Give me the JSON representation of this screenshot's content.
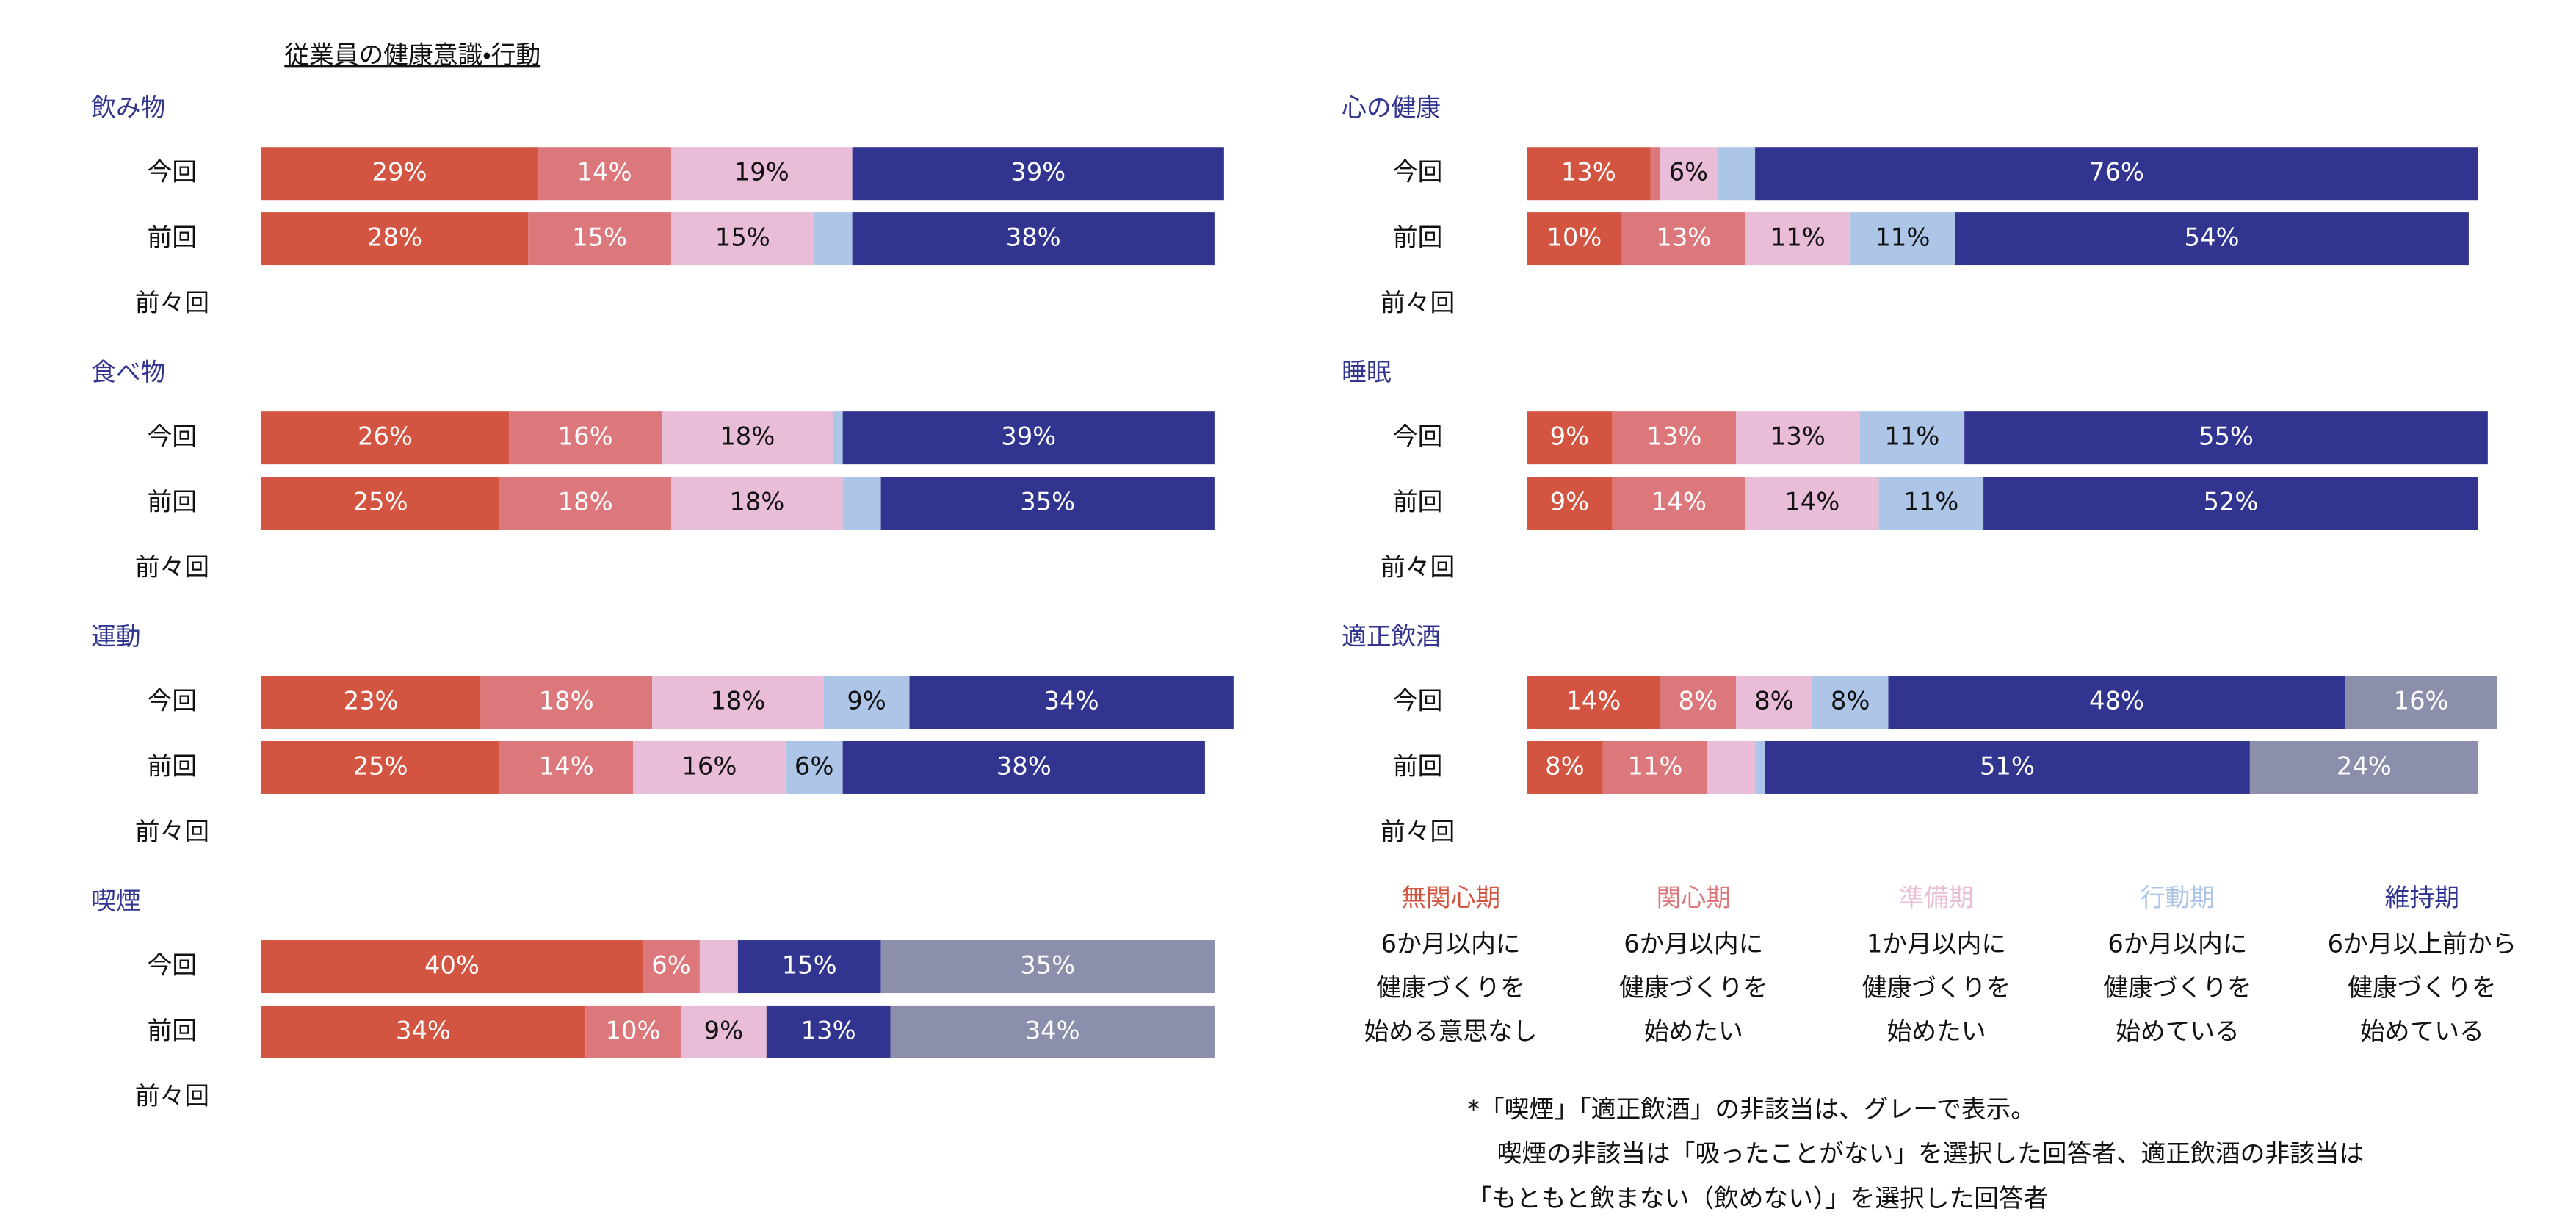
{
  "title": "従業員の健康意識・行動",
  "chart_data": [
    {
      "type": "bar",
      "title": "飲み物",
      "categories": [
        "今回",
        "前回",
        "前々回"
      ],
      "xlim": [
        0,
        100
      ],
      "series": [
        {
          "color": "#d35440",
          "values": [
            29,
            28,
            null
          ],
          "value_labels": [
            "29%",
            "28%",
            null
          ]
        },
        {
          "color": "#dc777c",
          "values": [
            14,
            15,
            null
          ],
          "value_labels": [
            "14%",
            "15%",
            null
          ]
        },
        {
          "color": "#e9bdd8",
          "values": [
            19,
            15,
            null
          ],
          "value_labels": [
            "19%",
            "15%",
            null
          ]
        },
        {
          "color": "#adc6e8",
          "values": [
            0,
            4,
            null
          ],
          "value_labels": [
            null,
            null,
            null
          ]
        },
        {
          "color": "#323590",
          "values": [
            39,
            38,
            null
          ],
          "value_labels": [
            "39%",
            "38%",
            null
          ]
        }
      ]
    },
    {
      "type": "bar",
      "title": "食べ物",
      "categories": [
        "今回",
        "前回",
        "前々回"
      ],
      "xlim": [
        0,
        100
      ],
      "series": [
        {
          "color": "#d35440",
          "values": [
            26,
            25,
            null
          ],
          "value_labels": [
            "26%",
            "25%",
            null
          ]
        },
        {
          "color": "#dc777c",
          "values": [
            16,
            18,
            null
          ],
          "value_labels": [
            "16%",
            "18%",
            null
          ]
        },
        {
          "color": "#e9bdd8",
          "values": [
            18,
            18,
            null
          ],
          "value_labels": [
            "18%",
            "18%",
            null
          ]
        },
        {
          "color": "#adc6e8",
          "values": [
            1,
            4,
            null
          ],
          "value_labels": [
            null,
            null,
            null
          ]
        },
        {
          "color": "#323590",
          "values": [
            39,
            35,
            null
          ],
          "value_labels": [
            "39%",
            "35%",
            null
          ]
        }
      ]
    },
    {
      "type": "bar",
      "title": "運動",
      "categories": [
        "今回",
        "前回",
        "前々回"
      ],
      "xlim": [
        0,
        100
      ],
      "series": [
        {
          "color": "#d35440",
          "values": [
            23,
            25,
            null
          ],
          "value_labels": [
            "23%",
            "25%",
            null
          ]
        },
        {
          "color": "#dc777c",
          "values": [
            18,
            14,
            null
          ],
          "value_labels": [
            "18%",
            "14%",
            null
          ]
        },
        {
          "color": "#e9bdd8",
          "values": [
            18,
            16,
            null
          ],
          "value_labels": [
            "18%",
            "16%",
            null
          ]
        },
        {
          "color": "#adc6e8",
          "values": [
            9,
            6,
            null
          ],
          "value_labels": [
            "9%",
            "6%",
            null
          ]
        },
        {
          "color": "#323590",
          "values": [
            34,
            38,
            null
          ],
          "value_labels": [
            "34%",
            "38%",
            null
          ]
        }
      ]
    },
    {
      "type": "bar",
      "title": "喫煙",
      "categories": [
        "今回",
        "前回",
        "前々回"
      ],
      "xlim": [
        0,
        100
      ],
      "series": [
        {
          "color": "#d35440",
          "values": [
            40,
            34,
            null
          ],
          "value_labels": [
            "40%",
            "34%",
            null
          ]
        },
        {
          "color": "#dc777c",
          "values": [
            6,
            10,
            null
          ],
          "value_labels": [
            "6%",
            "10%",
            null
          ]
        },
        {
          "color": "#e9bdd8",
          "values": [
            4,
            9,
            null
          ],
          "value_labels": [
            null,
            "9%",
            null
          ]
        },
        {
          "color": "#adc6e8",
          "values": [
            0,
            0,
            null
          ],
          "value_labels": [
            null,
            null,
            null
          ]
        },
        {
          "color": "#323590",
          "values": [
            15,
            13,
            null
          ],
          "value_labels": [
            "15%",
            "13%",
            null
          ]
        },
        {
          "color": "#8b8fab",
          "values": [
            35,
            34,
            null
          ],
          "value_labels": [
            "35%",
            "34%",
            null
          ]
        }
      ]
    },
    {
      "type": "bar",
      "title": "心の健康",
      "categories": [
        "今回",
        "前回",
        "前々回"
      ],
      "xlim": [
        0,
        100
      ],
      "series": [
        {
          "color": "#d35440",
          "values": [
            13,
            10,
            null
          ],
          "value_labels": [
            "13%",
            "10%",
            null
          ]
        },
        {
          "color": "#dc777c",
          "values": [
            1,
            13,
            null
          ],
          "value_labels": [
            null,
            "13%",
            null
          ]
        },
        {
          "color": "#e9bdd8",
          "values": [
            6,
            11,
            null
          ],
          "value_labels": [
            "6%",
            "11%",
            null
          ]
        },
        {
          "color": "#adc6e8",
          "values": [
            4,
            11,
            null
          ],
          "value_labels": [
            null,
            "11%",
            null
          ]
        },
        {
          "color": "#323590",
          "values": [
            76,
            54,
            null
          ],
          "value_labels": [
            "76%",
            "54%",
            null
          ]
        }
      ]
    },
    {
      "type": "bar",
      "title": "睡眠",
      "categories": [
        "今回",
        "前回",
        "前々回"
      ],
      "xlim": [
        0,
        100
      ],
      "series": [
        {
          "color": "#d35440",
          "values": [
            9,
            9,
            null
          ],
          "value_labels": [
            "9%",
            "9%",
            null
          ]
        },
        {
          "color": "#dc777c",
          "values": [
            13,
            14,
            null
          ],
          "value_labels": [
            "13%",
            "14%",
            null
          ]
        },
        {
          "color": "#e9bdd8",
          "values": [
            13,
            14,
            null
          ],
          "value_labels": [
            "13%",
            "14%",
            null
          ]
        },
        {
          "color": "#adc6e8",
          "values": [
            11,
            11,
            null
          ],
          "value_labels": [
            "11%",
            "11%",
            null
          ]
        },
        {
          "color": "#323590",
          "values": [
            55,
            52,
            null
          ],
          "value_labels": [
            "55%",
            "52%",
            null
          ]
        }
      ]
    },
    {
      "type": "bar",
      "title": "適正飲酒",
      "categories": [
        "今回",
        "前回",
        "前々回"
      ],
      "xlim": [
        0,
        100
      ],
      "series": [
        {
          "color": "#d35440",
          "values": [
            14,
            8,
            null
          ],
          "value_labels": [
            "14%",
            "8%",
            null
          ]
        },
        {
          "color": "#dc777c",
          "values": [
            8,
            11,
            null
          ],
          "value_labels": [
            "8%",
            "11%",
            null
          ]
        },
        {
          "color": "#e9bdd8",
          "values": [
            8,
            5,
            null
          ],
          "value_labels": [
            "8%",
            null,
            null
          ]
        },
        {
          "color": "#adc6e8",
          "values": [
            8,
            1,
            null
          ],
          "value_labels": [
            "8%",
            null,
            null
          ]
        },
        {
          "color": "#323590",
          "values": [
            48,
            51,
            null
          ],
          "value_labels": [
            "48%",
            "51%",
            null
          ]
        },
        {
          "color": "#8b8fab",
          "values": [
            16,
            24,
            null
          ],
          "value_labels": [
            "16%",
            "24%",
            null
          ]
        }
      ]
    }
  ],
  "legend": [
    {
      "name": "無関心期",
      "color": "#d35440",
      "description": [
        "6か月以内に",
        "健康づくりを",
        "始める意思なし"
      ]
    },
    {
      "name": "関心期",
      "color": "#dc777c",
      "description": [
        "6か月以内に",
        "健康づくりを",
        "始めたい"
      ]
    },
    {
      "name": "準備期",
      "color": "#e9bdd8",
      "description": [
        "1か月以内に",
        "健康づくりを",
        "始めたい"
      ]
    },
    {
      "name": "行動期",
      "color": "#adc6e8",
      "description": [
        "6か月以内に",
        "健康づくりを",
        "始めている"
      ]
    },
    {
      "name": "維持期",
      "color": "#323590",
      "description": [
        "6か月以上前から",
        "健康づくりを",
        "始めている"
      ]
    }
  ],
  "footnote": [
    "*「喫煙」「適正飲酒」の非該当は、グレーで表示。",
    "喫煙の非該当は「吸ったことがない」を選択した回答者、適正飲酒の非該当は",
    "「もともと飲まない（飲めない）」を選択した回答者"
  ]
}
